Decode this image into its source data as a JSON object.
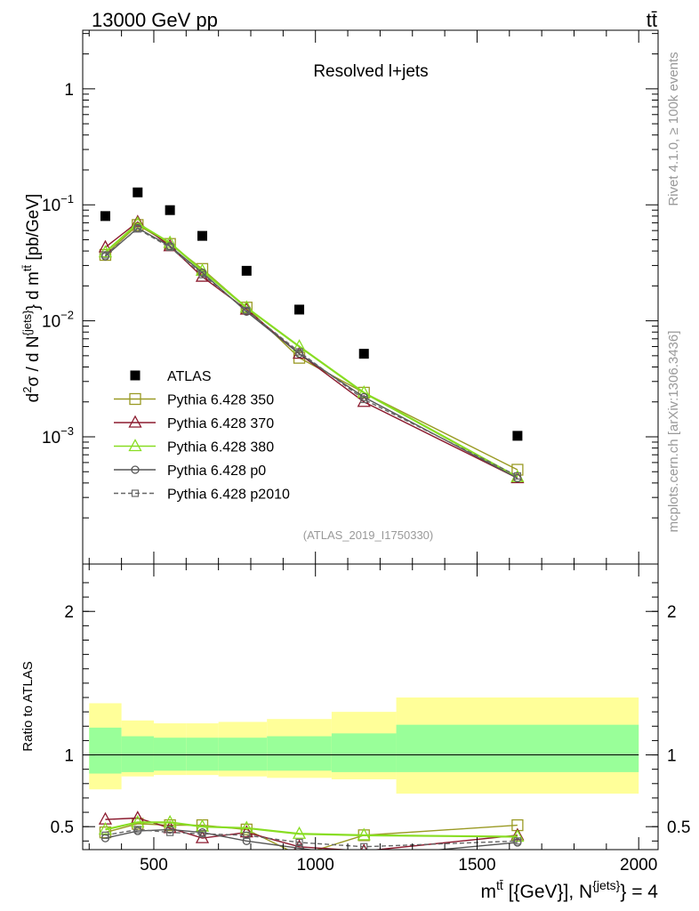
{
  "header": {
    "left": "13000 GeV pp",
    "right": "tt̄"
  },
  "side_text": {
    "rivet": "Rivet 4.1.0, ≥ 100k events",
    "mcplots": "mcplots.cern.ch [arXiv:1306.3436]"
  },
  "colors": {
    "atlas": "#000000",
    "p350": "#9a9a24",
    "p370": "#8b1a2e",
    "p380": "#88dd22",
    "p0": "#555555",
    "p2010": "#666666",
    "band_outer": "#ffff99",
    "band_inner": "#99ff99"
  },
  "chart_data": [
    {
      "type": "scatter",
      "title": "Resolved l+jets",
      "annotation": "(ATLAS_2019_I1750330)",
      "xlabel": "",
      "ylabel": "d²σ / d N^{jets} d m^{tt̄} [pb/GeV]",
      "ylabel_parts": {
        "d1": "d",
        "sup2": "2",
        "sigma": "σ  /  d N",
        "jets": "{jets}",
        "brace": "} d m",
        "ttbar": "tt̄",
        "unit": " [pb/GeV]"
      },
      "xlim": [
        280,
        2060
      ],
      "ylim": [
        8e-05,
        3.2
      ],
      "yscale": "log",
      "yticks": [
        {
          "value": 1,
          "base": "1",
          "exp": ""
        },
        {
          "value": 0.1,
          "base": "10",
          "exp": "−1"
        },
        {
          "value": 0.01,
          "base": "10",
          "exp": "−2"
        },
        {
          "value": 0.001,
          "base": "10",
          "exp": "−3"
        }
      ],
      "legend_position": "center-left",
      "x": [
        350,
        450,
        550,
        650,
        787,
        950,
        1150,
        1625
      ],
      "series": [
        {
          "name": "ATLAS",
          "key": "atlas",
          "marker": "square-filled",
          "values": [
            0.08,
            0.128,
            0.09,
            0.054,
            0.027,
            0.0125,
            0.0052,
            0.00102
          ]
        },
        {
          "name": "Pythia 6.428 350",
          "key": "p350",
          "marker": "square-open",
          "values": [
            0.037,
            0.067,
            0.046,
            0.028,
            0.013,
            0.0048,
            0.0024,
            0.00052
          ]
        },
        {
          "name": "Pythia 6.428 370",
          "key": "p370",
          "marker": "triangle-open",
          "values": [
            0.043,
            0.071,
            0.044,
            0.024,
            0.0125,
            0.0052,
            0.002,
            0.00044
          ]
        },
        {
          "name": "Pythia 6.428 380",
          "key": "p380",
          "marker": "triangle-open",
          "values": [
            0.039,
            0.069,
            0.047,
            0.027,
            0.013,
            0.006,
            0.0024,
            0.00045
          ]
        },
        {
          "name": "Pythia 6.428 p0",
          "key": "p0",
          "marker": "circle-open",
          "values": [
            0.036,
            0.063,
            0.044,
            0.026,
            0.012,
            0.0052,
            0.0022,
            0.00044
          ]
        },
        {
          "name": "Pythia 6.428 p2010",
          "key": "p2010",
          "marker": "square-small",
          "dashed": true,
          "values": [
            0.037,
            0.062,
            0.043,
            0.025,
            0.0123,
            0.0054,
            0.0021,
            0.00046
          ]
        }
      ]
    },
    {
      "type": "line",
      "ylabel": "Ratio to ATLAS",
      "xlabel_parts": {
        "m": "m",
        "ttbar": "tt̄",
        "rest": " [{GeV}], N",
        "jets": "{jets}",
        "tail": "} = 4"
      },
      "xlim": [
        280,
        2060
      ],
      "ylim": [
        0.34,
        2.33
      ],
      "xticks": [
        500,
        1000,
        1500,
        2000
      ],
      "yticks": [
        0.5,
        1,
        2
      ],
      "bins": [
        {
          "lo": 300,
          "hi": 400,
          "inner": [
            0.87,
            1.19
          ],
          "outer": [
            0.76,
            1.36
          ]
        },
        {
          "lo": 400,
          "hi": 500,
          "inner": [
            0.88,
            1.13
          ],
          "outer": [
            0.85,
            1.24
          ]
        },
        {
          "lo": 500,
          "hi": 600,
          "inner": [
            0.89,
            1.12
          ],
          "outer": [
            0.86,
            1.22
          ]
        },
        {
          "lo": 600,
          "hi": 700,
          "inner": [
            0.89,
            1.12
          ],
          "outer": [
            0.86,
            1.22
          ]
        },
        {
          "lo": 700,
          "hi": 850,
          "inner": [
            0.89,
            1.12
          ],
          "outer": [
            0.85,
            1.23
          ]
        },
        {
          "lo": 850,
          "hi": 1050,
          "inner": [
            0.89,
            1.13
          ],
          "outer": [
            0.84,
            1.25
          ]
        },
        {
          "lo": 1050,
          "hi": 1250,
          "inner": [
            0.88,
            1.15
          ],
          "outer": [
            0.83,
            1.3
          ]
        },
        {
          "lo": 1250,
          "hi": 2000,
          "inner": [
            0.88,
            1.21
          ],
          "outer": [
            0.73,
            1.4
          ]
        }
      ],
      "x": [
        350,
        450,
        550,
        650,
        787,
        950,
        1150,
        1625
      ],
      "series": [
        {
          "name": "Pythia 6.428 350",
          "key": "p350",
          "marker": "square-open",
          "values": [
            0.46,
            0.52,
            0.51,
            0.51,
            0.48,
            0.3,
            0.44,
            0.51
          ]
        },
        {
          "name": "Pythia 6.428 370",
          "key": "p370",
          "marker": "triangle-open",
          "values": [
            0.55,
            0.56,
            0.49,
            0.42,
            0.46,
            0.36,
            0.33,
            0.44
          ]
        },
        {
          "name": "Pythia 6.428 380",
          "key": "p380",
          "marker": "triangle-open",
          "values": [
            0.48,
            0.53,
            0.53,
            0.5,
            0.49,
            0.45,
            0.44,
            0.43
          ]
        },
        {
          "name": "Pythia 6.428 p0",
          "key": "p0",
          "marker": "circle-open",
          "values": [
            0.42,
            0.47,
            0.48,
            0.46,
            0.4,
            0.35,
            0.29,
            0.39
          ]
        },
        {
          "name": "Pythia 6.428 p2010",
          "key": "p2010",
          "marker": "square-small",
          "dashed": true,
          "values": [
            0.44,
            0.48,
            0.46,
            0.45,
            0.44,
            0.39,
            0.36,
            0.4
          ]
        }
      ]
    }
  ]
}
